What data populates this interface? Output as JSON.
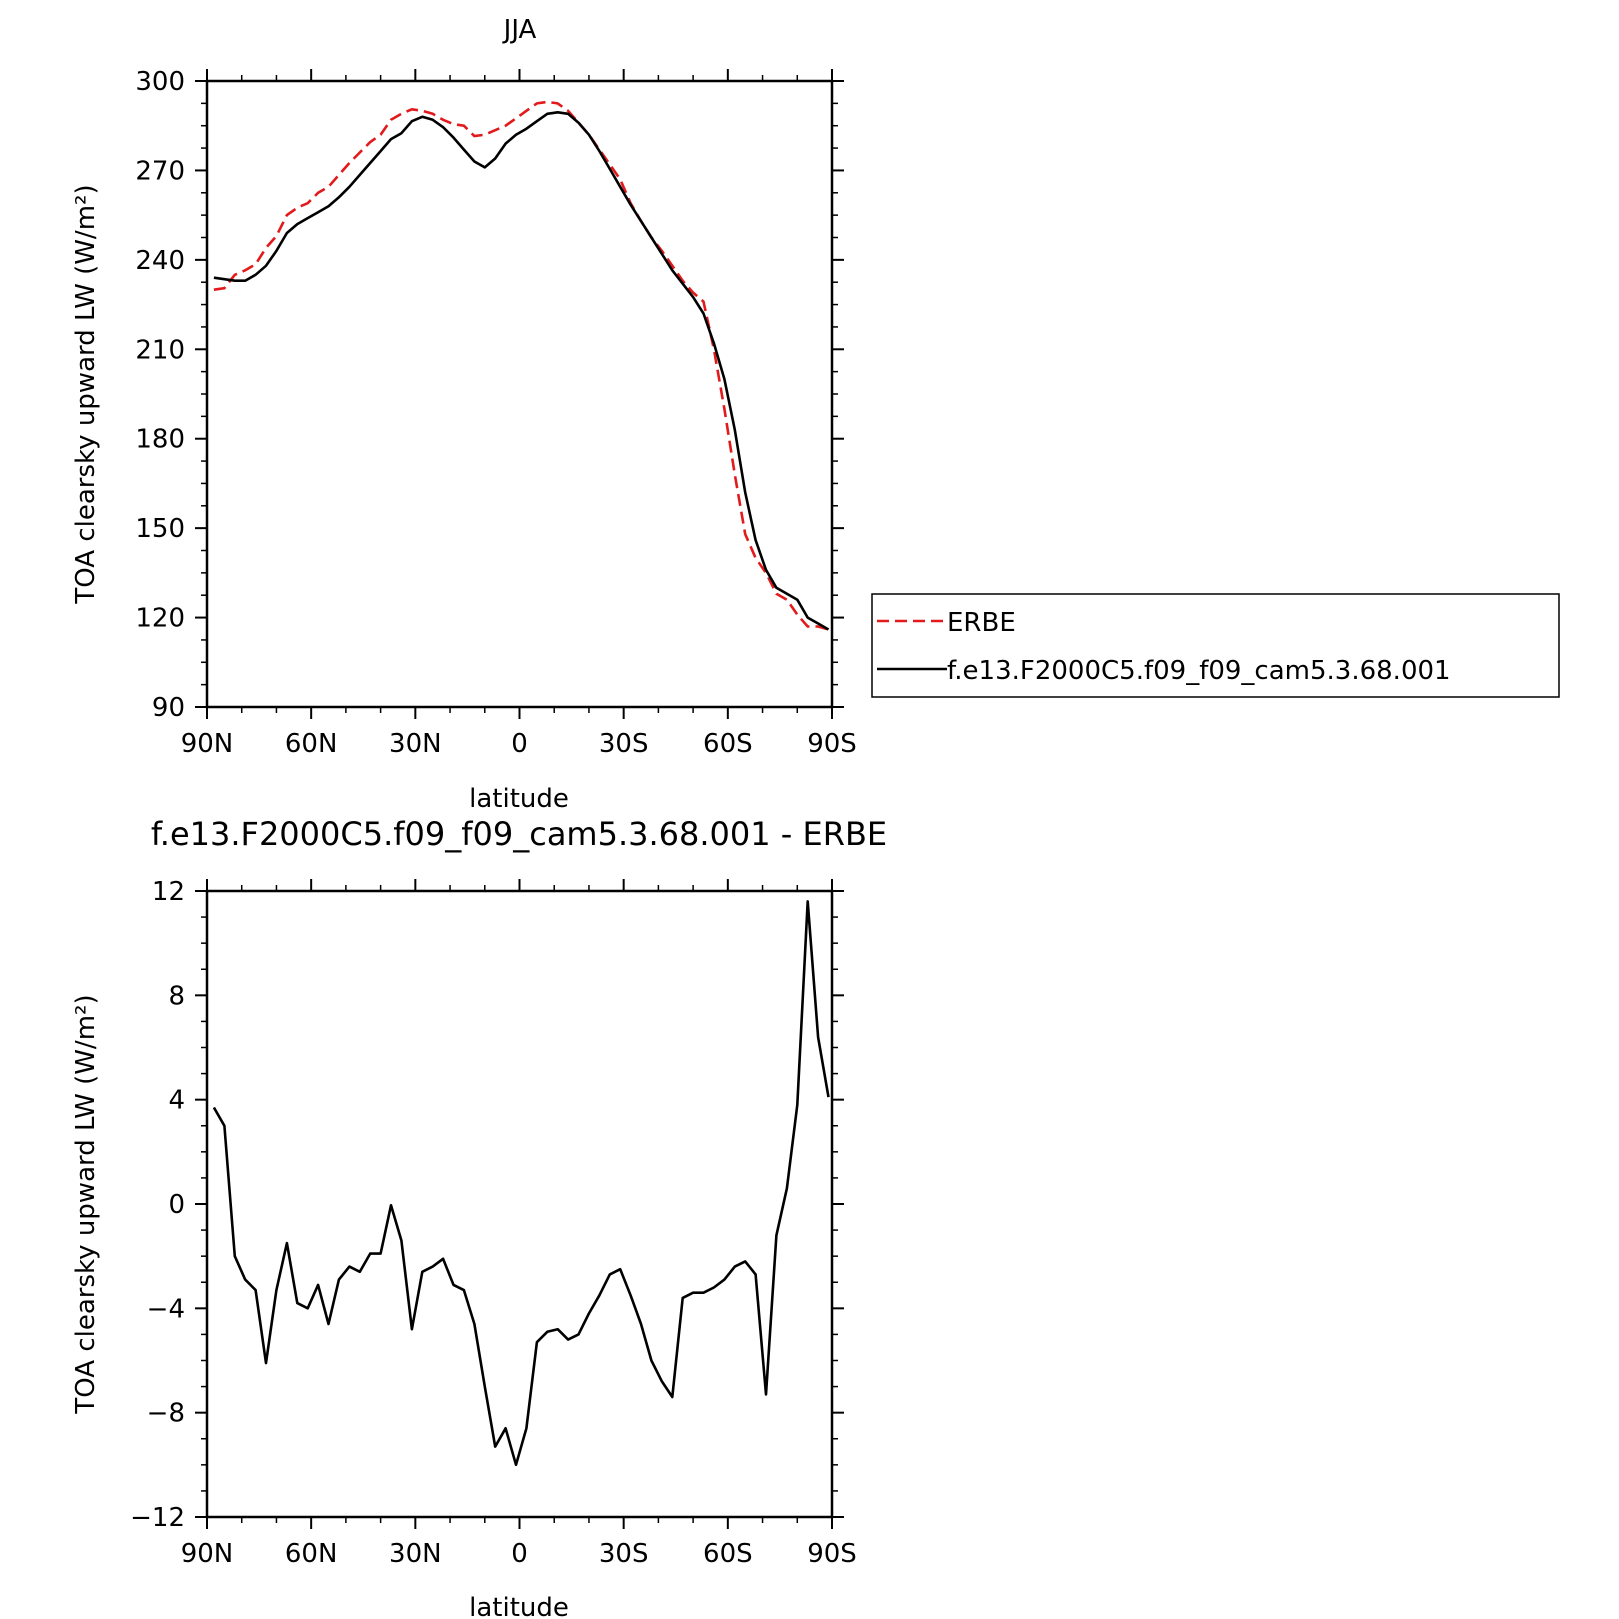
{
  "chart_data": [
    {
      "type": "line",
      "title": "JJA",
      "xlabel": "latitude",
      "ylabel": "TOA clearsky upward LW (W/m²)",
      "xlim": [
        90,
        -90
      ],
      "ylim": [
        90,
        300
      ],
      "xticks": [
        {
          "value": 90,
          "label": "90N"
        },
        {
          "value": 60,
          "label": "60N"
        },
        {
          "value": 30,
          "label": "30N"
        },
        {
          "value": 0,
          "label": "0"
        },
        {
          "value": -30,
          "label": "30S"
        },
        {
          "value": -60,
          "label": "60S"
        },
        {
          "value": -90,
          "label": "90S"
        }
      ],
      "yticks": [
        90,
        120,
        150,
        180,
        210,
        240,
        270,
        300
      ],
      "legend_position": "right",
      "series": [
        {
          "name": "ERBE",
          "color": "#e31a1c",
          "style": "dashed",
          "x": [
            88,
            85,
            82,
            79,
            76,
            73,
            70,
            67,
            64,
            61,
            58,
            55,
            52,
            49,
            46,
            43,
            40,
            37,
            34,
            31,
            28,
            25,
            22,
            19,
            16,
            13,
            10,
            7,
            4,
            1,
            -2,
            -5,
            -8,
            -11,
            -14,
            -17,
            -20,
            -23,
            -26,
            -29,
            -32,
            -35,
            -38,
            -41,
            -44,
            -47,
            -50,
            -53,
            -56,
            -59,
            -62,
            -65,
            -68,
            -71,
            -74,
            -77,
            -80,
            -83,
            -86,
            -89
          ],
          "y": [
            230,
            230.5,
            235,
            236.5,
            238.5,
            244,
            248,
            255,
            257.5,
            259,
            262.5,
            264.5,
            268.5,
            272.5,
            276,
            279.5,
            282,
            287,
            289,
            290.5,
            290,
            289,
            287,
            285.5,
            285,
            281.5,
            282,
            283.5,
            285,
            287.5,
            290,
            292.5,
            293,
            292.5,
            290,
            286,
            282,
            277,
            272,
            267,
            259,
            253,
            247.5,
            243,
            238,
            233,
            229,
            226,
            210,
            190,
            168,
            148,
            140,
            135,
            128,
            126,
            121,
            117,
            117,
            116
          ]
        },
        {
          "name": "f.e13.F2000C5.f09_f09_cam5.3.68.001",
          "color": "#000000",
          "style": "solid",
          "x": [
            88,
            85,
            82,
            79,
            76,
            73,
            70,
            67,
            64,
            61,
            58,
            55,
            52,
            49,
            46,
            43,
            40,
            37,
            34,
            31,
            28,
            25,
            22,
            19,
            16,
            13,
            10,
            7,
            4,
            1,
            -2,
            -5,
            -8,
            -11,
            -14,
            -17,
            -20,
            -23,
            -26,
            -29,
            -32,
            -35,
            -38,
            -41,
            -44,
            -47,
            -50,
            -53,
            -56,
            -59,
            -62,
            -65,
            -68,
            -71,
            -74,
            -77,
            -80,
            -83,
            -86,
            -89
          ],
          "y": [
            234,
            233.5,
            233,
            233,
            235,
            238,
            243,
            249,
            252,
            254,
            256,
            258,
            261,
            264.5,
            268.5,
            272.5,
            276.5,
            280.5,
            282.5,
            286.5,
            288,
            287,
            284.5,
            281,
            277,
            273,
            271,
            274,
            279,
            282,
            284,
            286.5,
            289,
            289.5,
            289,
            286,
            282,
            276.5,
            270.5,
            264.5,
            258.5,
            253,
            247.5,
            242,
            236.5,
            232,
            227.5,
            222,
            212,
            200,
            183,
            162,
            146,
            136,
            130,
            128,
            126,
            120,
            118,
            116
          ]
        }
      ]
    },
    {
      "type": "line",
      "title": "f.e13.F2000C5.f09_f09_cam5.3.68.001 - ERBE",
      "xlabel": "latitude",
      "ylabel": "TOA clearsky upward LW (W/m²)",
      "xlim": [
        90,
        -90
      ],
      "ylim": [
        -12,
        12
      ],
      "xticks": [
        {
          "value": 90,
          "label": "90N"
        },
        {
          "value": 60,
          "label": "60N"
        },
        {
          "value": 30,
          "label": "30N"
        },
        {
          "value": 0,
          "label": "0"
        },
        {
          "value": -30,
          "label": "30S"
        },
        {
          "value": -60,
          "label": "60S"
        },
        {
          "value": -90,
          "label": "90S"
        }
      ],
      "yticks": [
        -12,
        -8,
        -4,
        0,
        4,
        8,
        12
      ],
      "series": [
        {
          "color": "#000000",
          "style": "solid",
          "x": [
            88,
            85,
            82,
            79,
            76,
            73,
            70,
            67,
            64,
            61,
            58,
            55,
            52,
            49,
            46,
            43,
            40,
            37,
            34,
            31,
            28,
            25,
            22,
            19,
            16,
            13,
            10,
            7,
            4,
            1,
            -2,
            -5,
            -8,
            -11,
            -14,
            -17,
            -20,
            -23,
            -26,
            -29,
            -32,
            -35,
            -38,
            -41,
            -44,
            -47,
            -50,
            -53,
            -56,
            -59,
            -62,
            -65,
            -68,
            -71,
            -74,
            -77,
            -80,
            -83,
            -86,
            -89
          ],
          "y": [
            3.7,
            3.0,
            -2.0,
            -2.9,
            -3.3,
            -6.1,
            -3.3,
            -1.5,
            -3.8,
            -4.0,
            -3.1,
            -4.6,
            -2.9,
            -2.4,
            -2.6,
            -1.9,
            -1.9,
            -0.05,
            -1.4,
            -4.8,
            -2.6,
            -2.4,
            -2.1,
            -3.1,
            -3.3,
            -4.6,
            -7.0,
            -9.3,
            -8.6,
            -10.0,
            -8.6,
            -5.3,
            -4.9,
            -4.8,
            -5.2,
            -5.0,
            -4.2,
            -3.5,
            -2.7,
            -2.5,
            -3.5,
            -4.6,
            -6.0,
            -6.8,
            -7.4,
            -3.6,
            -3.4,
            -3.4,
            -3.2,
            -2.9,
            -2.4,
            -2.2,
            -2.7,
            -7.3,
            -1.2,
            0.6,
            3.8,
            11.6,
            6.4,
            4.1
          ]
        }
      ]
    }
  ],
  "legend": {
    "items": [
      "ERBE",
      "f.e13.F2000C5.f09_f09_cam5.3.68.001"
    ]
  }
}
